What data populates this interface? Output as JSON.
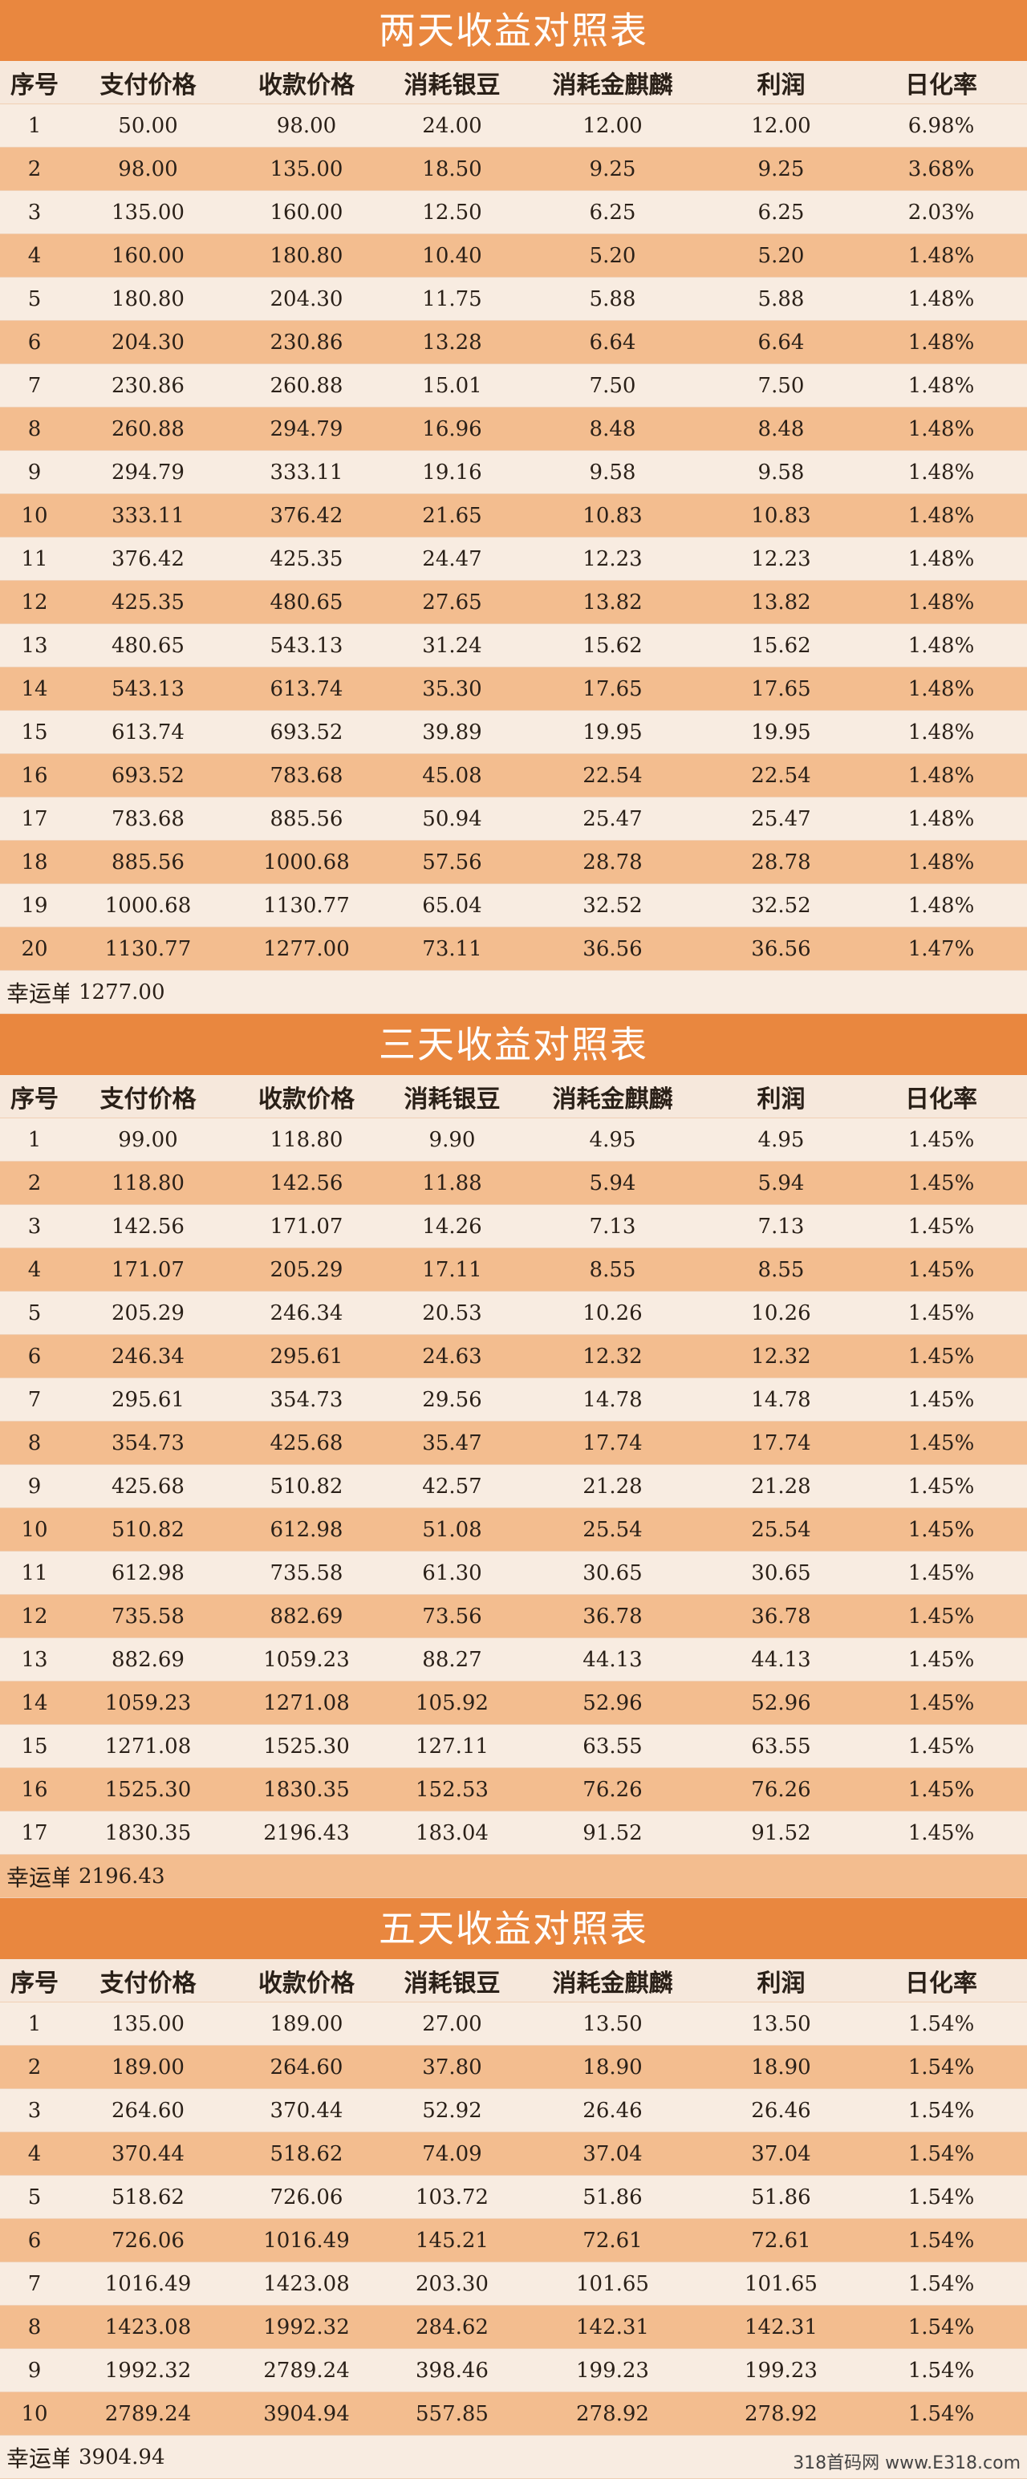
{
  "headers": [
    "序号",
    "支付价格",
    "收款价格",
    "消耗银豆",
    "消耗金麒麟",
    "利润",
    "日化率"
  ],
  "lucky_label": "幸运单",
  "watermark": "318首码网 www.E318.com",
  "sections": [
    {
      "title": "两天收益对照表",
      "lucky_value": "1277.00",
      "rows": [
        [
          "1",
          "50.00",
          "98.00",
          "24.00",
          "12.00",
          "12.00",
          "6.98%"
        ],
        [
          "2",
          "98.00",
          "135.00",
          "18.50",
          "9.25",
          "9.25",
          "3.68%"
        ],
        [
          "3",
          "135.00",
          "160.00",
          "12.50",
          "6.25",
          "6.25",
          "2.03%"
        ],
        [
          "4",
          "160.00",
          "180.80",
          "10.40",
          "5.20",
          "5.20",
          "1.48%"
        ],
        [
          "5",
          "180.80",
          "204.30",
          "11.75",
          "5.88",
          "5.88",
          "1.48%"
        ],
        [
          "6",
          "204.30",
          "230.86",
          "13.28",
          "6.64",
          "6.64",
          "1.48%"
        ],
        [
          "7",
          "230.86",
          "260.88",
          "15.01",
          "7.50",
          "7.50",
          "1.48%"
        ],
        [
          "8",
          "260.88",
          "294.79",
          "16.96",
          "8.48",
          "8.48",
          "1.48%"
        ],
        [
          "9",
          "294.79",
          "333.11",
          "19.16",
          "9.58",
          "9.58",
          "1.48%"
        ],
        [
          "10",
          "333.11",
          "376.42",
          "21.65",
          "10.83",
          "10.83",
          "1.48%"
        ],
        [
          "11",
          "376.42",
          "425.35",
          "24.47",
          "12.23",
          "12.23",
          "1.48%"
        ],
        [
          "12",
          "425.35",
          "480.65",
          "27.65",
          "13.82",
          "13.82",
          "1.48%"
        ],
        [
          "13",
          "480.65",
          "543.13",
          "31.24",
          "15.62",
          "15.62",
          "1.48%"
        ],
        [
          "14",
          "543.13",
          "613.74",
          "35.30",
          "17.65",
          "17.65",
          "1.48%"
        ],
        [
          "15",
          "613.74",
          "693.52",
          "39.89",
          "19.95",
          "19.95",
          "1.48%"
        ],
        [
          "16",
          "693.52",
          "783.68",
          "45.08",
          "22.54",
          "22.54",
          "1.48%"
        ],
        [
          "17",
          "783.68",
          "885.56",
          "50.94",
          "25.47",
          "25.47",
          "1.48%"
        ],
        [
          "18",
          "885.56",
          "1000.68",
          "57.56",
          "28.78",
          "28.78",
          "1.48%"
        ],
        [
          "19",
          "1000.68",
          "1130.77",
          "65.04",
          "32.52",
          "32.52",
          "1.48%"
        ],
        [
          "20",
          "1130.77",
          "1277.00",
          "73.11",
          "36.56",
          "36.56",
          "1.47%"
        ]
      ]
    },
    {
      "title": "三天收益对照表",
      "lucky_value": "2196.43",
      "rows": [
        [
          "1",
          "99.00",
          "118.80",
          "9.90",
          "4.95",
          "4.95",
          "1.45%"
        ],
        [
          "2",
          "118.80",
          "142.56",
          "11.88",
          "5.94",
          "5.94",
          "1.45%"
        ],
        [
          "3",
          "142.56",
          "171.07",
          "14.26",
          "7.13",
          "7.13",
          "1.45%"
        ],
        [
          "4",
          "171.07",
          "205.29",
          "17.11",
          "8.55",
          "8.55",
          "1.45%"
        ],
        [
          "5",
          "205.29",
          "246.34",
          "20.53",
          "10.26",
          "10.26",
          "1.45%"
        ],
        [
          "6",
          "246.34",
          "295.61",
          "24.63",
          "12.32",
          "12.32",
          "1.45%"
        ],
        [
          "7",
          "295.61",
          "354.73",
          "29.56",
          "14.78",
          "14.78",
          "1.45%"
        ],
        [
          "8",
          "354.73",
          "425.68",
          "35.47",
          "17.74",
          "17.74",
          "1.45%"
        ],
        [
          "9",
          "425.68",
          "510.82",
          "42.57",
          "21.28",
          "21.28",
          "1.45%"
        ],
        [
          "10",
          "510.82",
          "612.98",
          "51.08",
          "25.54",
          "25.54",
          "1.45%"
        ],
        [
          "11",
          "612.98",
          "735.58",
          "61.30",
          "30.65",
          "30.65",
          "1.45%"
        ],
        [
          "12",
          "735.58",
          "882.69",
          "73.56",
          "36.78",
          "36.78",
          "1.45%"
        ],
        [
          "13",
          "882.69",
          "1059.23",
          "88.27",
          "44.13",
          "44.13",
          "1.45%"
        ],
        [
          "14",
          "1059.23",
          "1271.08",
          "105.92",
          "52.96",
          "52.96",
          "1.45%"
        ],
        [
          "15",
          "1271.08",
          "1525.30",
          "127.11",
          "63.55",
          "63.55",
          "1.45%"
        ],
        [
          "16",
          "1525.30",
          "1830.35",
          "152.53",
          "76.26",
          "76.26",
          "1.45%"
        ],
        [
          "17",
          "1830.35",
          "2196.43",
          "183.04",
          "91.52",
          "91.52",
          "1.45%"
        ]
      ]
    },
    {
      "title": "五天收益对照表",
      "lucky_value": "3904.94",
      "rows": [
        [
          "1",
          "135.00",
          "189.00",
          "27.00",
          "13.50",
          "13.50",
          "1.54%"
        ],
        [
          "2",
          "189.00",
          "264.60",
          "37.80",
          "18.90",
          "18.90",
          "1.54%"
        ],
        [
          "3",
          "264.60",
          "370.44",
          "52.92",
          "26.46",
          "26.46",
          "1.54%"
        ],
        [
          "4",
          "370.44",
          "518.62",
          "74.09",
          "37.04",
          "37.04",
          "1.54%"
        ],
        [
          "5",
          "518.62",
          "726.06",
          "103.72",
          "51.86",
          "51.86",
          "1.54%"
        ],
        [
          "6",
          "726.06",
          "1016.49",
          "145.21",
          "72.61",
          "72.61",
          "1.54%"
        ],
        [
          "7",
          "1016.49",
          "1423.08",
          "203.30",
          "101.65",
          "101.65",
          "1.54%"
        ],
        [
          "8",
          "1423.08",
          "1992.32",
          "284.62",
          "142.31",
          "142.31",
          "1.54%"
        ],
        [
          "9",
          "1992.32",
          "2789.24",
          "398.46",
          "199.23",
          "199.23",
          "1.54%"
        ],
        [
          "10",
          "2789.24",
          "3904.94",
          "557.85",
          "278.92",
          "278.92",
          "1.54%"
        ]
      ]
    }
  ]
}
